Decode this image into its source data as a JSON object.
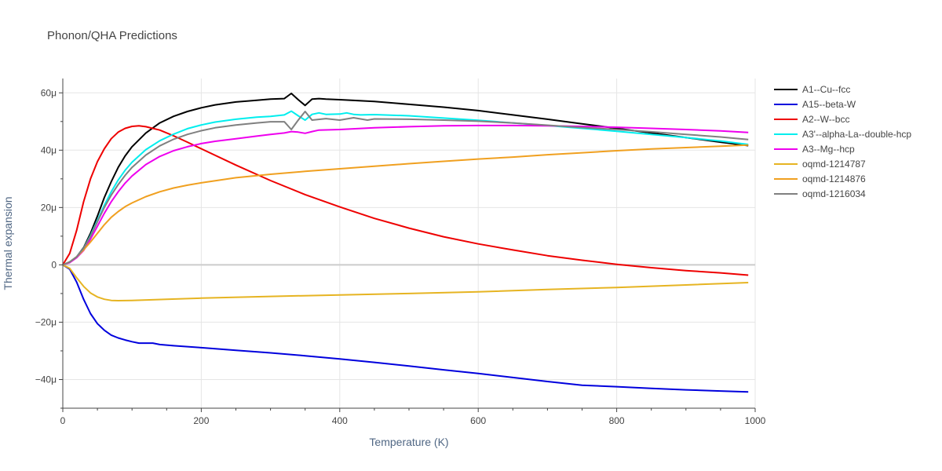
{
  "chart_data": {
    "type": "line",
    "title": "Phonon/QHA Predictions",
    "xlabel": "Temperature (K)",
    "ylabel": "Thermal expansion",
    "xlim": [
      0,
      1000
    ],
    "ylim": [
      -50,
      65
    ],
    "x_ticks": [
      0,
      200,
      400,
      600,
      800,
      1000
    ],
    "x_tick_labels": [
      "0",
      "200",
      "400",
      "600",
      "800",
      "1000"
    ],
    "y_ticks": [
      -40,
      -20,
      0,
      20,
      40,
      60
    ],
    "y_tick_labels": [
      "−40μ",
      "−20μ",
      "0",
      "20μ",
      "40μ",
      "60μ"
    ],
    "grid": true,
    "legend_position": "top-right",
    "series": [
      {
        "name": "A1--Cu--fcc",
        "color": "#000000",
        "points": [
          [
            0,
            0
          ],
          [
            10,
            1
          ],
          [
            20,
            2.8
          ],
          [
            30,
            6
          ],
          [
            40,
            11
          ],
          [
            50,
            17
          ],
          [
            60,
            23.5
          ],
          [
            70,
            29
          ],
          [
            80,
            34
          ],
          [
            90,
            38
          ],
          [
            100,
            41.2
          ],
          [
            120,
            46
          ],
          [
            140,
            49.5
          ],
          [
            160,
            51.8
          ],
          [
            180,
            53.5
          ],
          [
            200,
            54.8
          ],
          [
            220,
            55.8
          ],
          [
            250,
            56.8
          ],
          [
            280,
            57.4
          ],
          [
            300,
            57.8
          ],
          [
            320,
            58
          ],
          [
            330,
            59.8
          ],
          [
            340,
            57.6
          ],
          [
            350,
            55.6
          ],
          [
            360,
            57.8
          ],
          [
            370,
            58
          ],
          [
            380,
            57.8
          ],
          [
            400,
            57.6
          ],
          [
            450,
            57
          ],
          [
            500,
            56
          ],
          [
            550,
            55
          ],
          [
            600,
            53.8
          ],
          [
            650,
            52.3
          ],
          [
            700,
            50.8
          ],
          [
            750,
            49.2
          ],
          [
            800,
            47.6
          ],
          [
            850,
            46
          ],
          [
            900,
            44.4
          ],
          [
            950,
            42.8
          ],
          [
            990,
            41.6
          ]
        ]
      },
      {
        "name": "A15--beta-W",
        "color": "#0000dd",
        "points": [
          [
            0,
            0
          ],
          [
            10,
            -1.5
          ],
          [
            20,
            -6
          ],
          [
            30,
            -12
          ],
          [
            40,
            -17
          ],
          [
            50,
            -20.5
          ],
          [
            60,
            -22.8
          ],
          [
            70,
            -24.5
          ],
          [
            80,
            -25.5
          ],
          [
            90,
            -26.2
          ],
          [
            100,
            -26.8
          ],
          [
            110,
            -27.3
          ],
          [
            120,
            -27.3
          ],
          [
            130,
            -27.3
          ],
          [
            140,
            -27.8
          ],
          [
            160,
            -28.2
          ],
          [
            200,
            -28.9
          ],
          [
            250,
            -29.8
          ],
          [
            300,
            -30.7
          ],
          [
            350,
            -31.7
          ],
          [
            400,
            -32.8
          ],
          [
            450,
            -34
          ],
          [
            500,
            -35.3
          ],
          [
            550,
            -36.6
          ],
          [
            600,
            -37.9
          ],
          [
            650,
            -39.3
          ],
          [
            700,
            -40.7
          ],
          [
            750,
            -42
          ],
          [
            800,
            -42.5
          ],
          [
            850,
            -43.1
          ],
          [
            900,
            -43.6
          ],
          [
            950,
            -44
          ],
          [
            990,
            -44.3
          ]
        ]
      },
      {
        "name": "A2--W--bcc",
        "color": "#ee0000",
        "points": [
          [
            0,
            0
          ],
          [
            10,
            4
          ],
          [
            20,
            12
          ],
          [
            30,
            22
          ],
          [
            40,
            30
          ],
          [
            50,
            36
          ],
          [
            60,
            40.5
          ],
          [
            70,
            44
          ],
          [
            80,
            46.3
          ],
          [
            90,
            47.6
          ],
          [
            100,
            48.3
          ],
          [
            110,
            48.5
          ],
          [
            120,
            48.2
          ],
          [
            140,
            47
          ],
          [
            160,
            45
          ],
          [
            180,
            42.8
          ],
          [
            200,
            40.5
          ],
          [
            250,
            34.8
          ],
          [
            300,
            29.4
          ],
          [
            350,
            24.5
          ],
          [
            400,
            20.2
          ],
          [
            450,
            16.2
          ],
          [
            500,
            12.8
          ],
          [
            550,
            9.8
          ],
          [
            600,
            7.3
          ],
          [
            650,
            5.2
          ],
          [
            700,
            3.2
          ],
          [
            750,
            1.6
          ],
          [
            800,
            0.2
          ],
          [
            850,
            -1
          ],
          [
            900,
            -2
          ],
          [
            950,
            -2.8
          ],
          [
            990,
            -3.6
          ]
        ]
      },
      {
        "name": "A3'--alpha-La--double-hcp",
        "color": "#00eeee",
        "points": [
          [
            0,
            0
          ],
          [
            10,
            1
          ],
          [
            20,
            2.8
          ],
          [
            30,
            5.8
          ],
          [
            40,
            10.3
          ],
          [
            50,
            15.5
          ],
          [
            60,
            20.8
          ],
          [
            70,
            25.5
          ],
          [
            80,
            29.6
          ],
          [
            90,
            33
          ],
          [
            100,
            35.8
          ],
          [
            120,
            40.2
          ],
          [
            140,
            43.3
          ],
          [
            160,
            45.6
          ],
          [
            180,
            47.5
          ],
          [
            200,
            48.8
          ],
          [
            220,
            49.8
          ],
          [
            250,
            50.8
          ],
          [
            280,
            51.5
          ],
          [
            300,
            51.8
          ],
          [
            320,
            52.3
          ],
          [
            330,
            53.6
          ],
          [
            340,
            52
          ],
          [
            350,
            50.5
          ],
          [
            360,
            52.5
          ],
          [
            370,
            53
          ],
          [
            380,
            52.5
          ],
          [
            400,
            52.6
          ],
          [
            410,
            53
          ],
          [
            420,
            52.5
          ],
          [
            430,
            52.3
          ],
          [
            450,
            52.4
          ],
          [
            500,
            52
          ],
          [
            550,
            51.2
          ],
          [
            600,
            50.4
          ],
          [
            650,
            49.5
          ],
          [
            700,
            48.6
          ],
          [
            750,
            47.6
          ],
          [
            800,
            46.6
          ],
          [
            850,
            45.5
          ],
          [
            900,
            44.4
          ],
          [
            950,
            43.2
          ],
          [
            990,
            42
          ]
        ]
      },
      {
        "name": "A3--Mg--hcp",
        "color": "#ee00ee",
        "points": [
          [
            0,
            0
          ],
          [
            10,
            0.8
          ],
          [
            20,
            2.5
          ],
          [
            30,
            5
          ],
          [
            40,
            9
          ],
          [
            50,
            13.5
          ],
          [
            60,
            18
          ],
          [
            70,
            22
          ],
          [
            80,
            25.5
          ],
          [
            90,
            28.5
          ],
          [
            100,
            31
          ],
          [
            120,
            35
          ],
          [
            140,
            37.8
          ],
          [
            160,
            39.8
          ],
          [
            180,
            41.2
          ],
          [
            200,
            42.3
          ],
          [
            220,
            43.1
          ],
          [
            250,
            44
          ],
          [
            280,
            44.9
          ],
          [
            300,
            45.5
          ],
          [
            320,
            46
          ],
          [
            330,
            46.5
          ],
          [
            340,
            46.3
          ],
          [
            350,
            45.9
          ],
          [
            360,
            46.5
          ],
          [
            370,
            47
          ],
          [
            400,
            47.2
          ],
          [
            450,
            47.8
          ],
          [
            500,
            48.2
          ],
          [
            550,
            48.5
          ],
          [
            600,
            48.6
          ],
          [
            650,
            48.6
          ],
          [
            700,
            48.5
          ],
          [
            750,
            48.3
          ],
          [
            800,
            48
          ],
          [
            850,
            47.6
          ],
          [
            900,
            47.2
          ],
          [
            950,
            46.7
          ],
          [
            990,
            46.2
          ]
        ]
      },
      {
        "name": "oqmd-1214787",
        "color": "#e6b422",
        "points": [
          [
            0,
            0
          ],
          [
            10,
            -1.2
          ],
          [
            20,
            -4.5
          ],
          [
            30,
            -7.5
          ],
          [
            40,
            -9.8
          ],
          [
            50,
            -11.2
          ],
          [
            60,
            -12
          ],
          [
            70,
            -12.4
          ],
          [
            80,
            -12.5
          ],
          [
            100,
            -12.4
          ],
          [
            150,
            -12
          ],
          [
            200,
            -11.6
          ],
          [
            300,
            -11
          ],
          [
            400,
            -10.5
          ],
          [
            500,
            -10
          ],
          [
            600,
            -9.4
          ],
          [
            700,
            -8.6
          ],
          [
            800,
            -7.9
          ],
          [
            900,
            -7
          ],
          [
            990,
            -6.2
          ]
        ]
      },
      {
        "name": "oqmd-1214876",
        "color": "#f0a020",
        "points": [
          [
            0,
            0
          ],
          [
            10,
            1
          ],
          [
            20,
            2.8
          ],
          [
            30,
            5.2
          ],
          [
            40,
            8
          ],
          [
            50,
            11
          ],
          [
            60,
            14
          ],
          [
            70,
            16.6
          ],
          [
            80,
            18.6
          ],
          [
            90,
            20.3
          ],
          [
            100,
            21.6
          ],
          [
            120,
            23.8
          ],
          [
            140,
            25.5
          ],
          [
            160,
            26.8
          ],
          [
            180,
            27.8
          ],
          [
            200,
            28.6
          ],
          [
            250,
            30.4
          ],
          [
            300,
            31.6
          ],
          [
            350,
            32.6
          ],
          [
            400,
            33.5
          ],
          [
            450,
            34.4
          ],
          [
            500,
            35.3
          ],
          [
            550,
            36.1
          ],
          [
            600,
            36.9
          ],
          [
            650,
            37.6
          ],
          [
            700,
            38.4
          ],
          [
            750,
            39.1
          ],
          [
            800,
            39.8
          ],
          [
            850,
            40.4
          ],
          [
            900,
            40.9
          ],
          [
            950,
            41.4
          ],
          [
            990,
            41.8
          ]
        ]
      },
      {
        "name": "oqmd-1216034",
        "color": "#808080",
        "points": [
          [
            0,
            0
          ],
          [
            10,
            1
          ],
          [
            20,
            2.8
          ],
          [
            30,
            5.8
          ],
          [
            40,
            10
          ],
          [
            50,
            15
          ],
          [
            60,
            20
          ],
          [
            70,
            24.3
          ],
          [
            80,
            28
          ],
          [
            90,
            31.2
          ],
          [
            100,
            34
          ],
          [
            120,
            38.3
          ],
          [
            140,
            41.5
          ],
          [
            160,
            43.8
          ],
          [
            180,
            45.5
          ],
          [
            200,
            46.8
          ],
          [
            220,
            47.8
          ],
          [
            250,
            48.8
          ],
          [
            280,
            49.5
          ],
          [
            300,
            49.9
          ],
          [
            320,
            49.9
          ],
          [
            330,
            47.2
          ],
          [
            340,
            50.5
          ],
          [
            350,
            53.5
          ],
          [
            360,
            50.5
          ],
          [
            380,
            51
          ],
          [
            400,
            50.5
          ],
          [
            420,
            51.3
          ],
          [
            440,
            50.5
          ],
          [
            450,
            50.9
          ],
          [
            500,
            50.8
          ],
          [
            550,
            50.5
          ],
          [
            600,
            50.1
          ],
          [
            650,
            49.5
          ],
          [
            700,
            48.7
          ],
          [
            750,
            47.9
          ],
          [
            800,
            47.2
          ],
          [
            850,
            46.4
          ],
          [
            900,
            45.5
          ],
          [
            950,
            44.6
          ],
          [
            990,
            43.7
          ]
        ]
      }
    ]
  }
}
